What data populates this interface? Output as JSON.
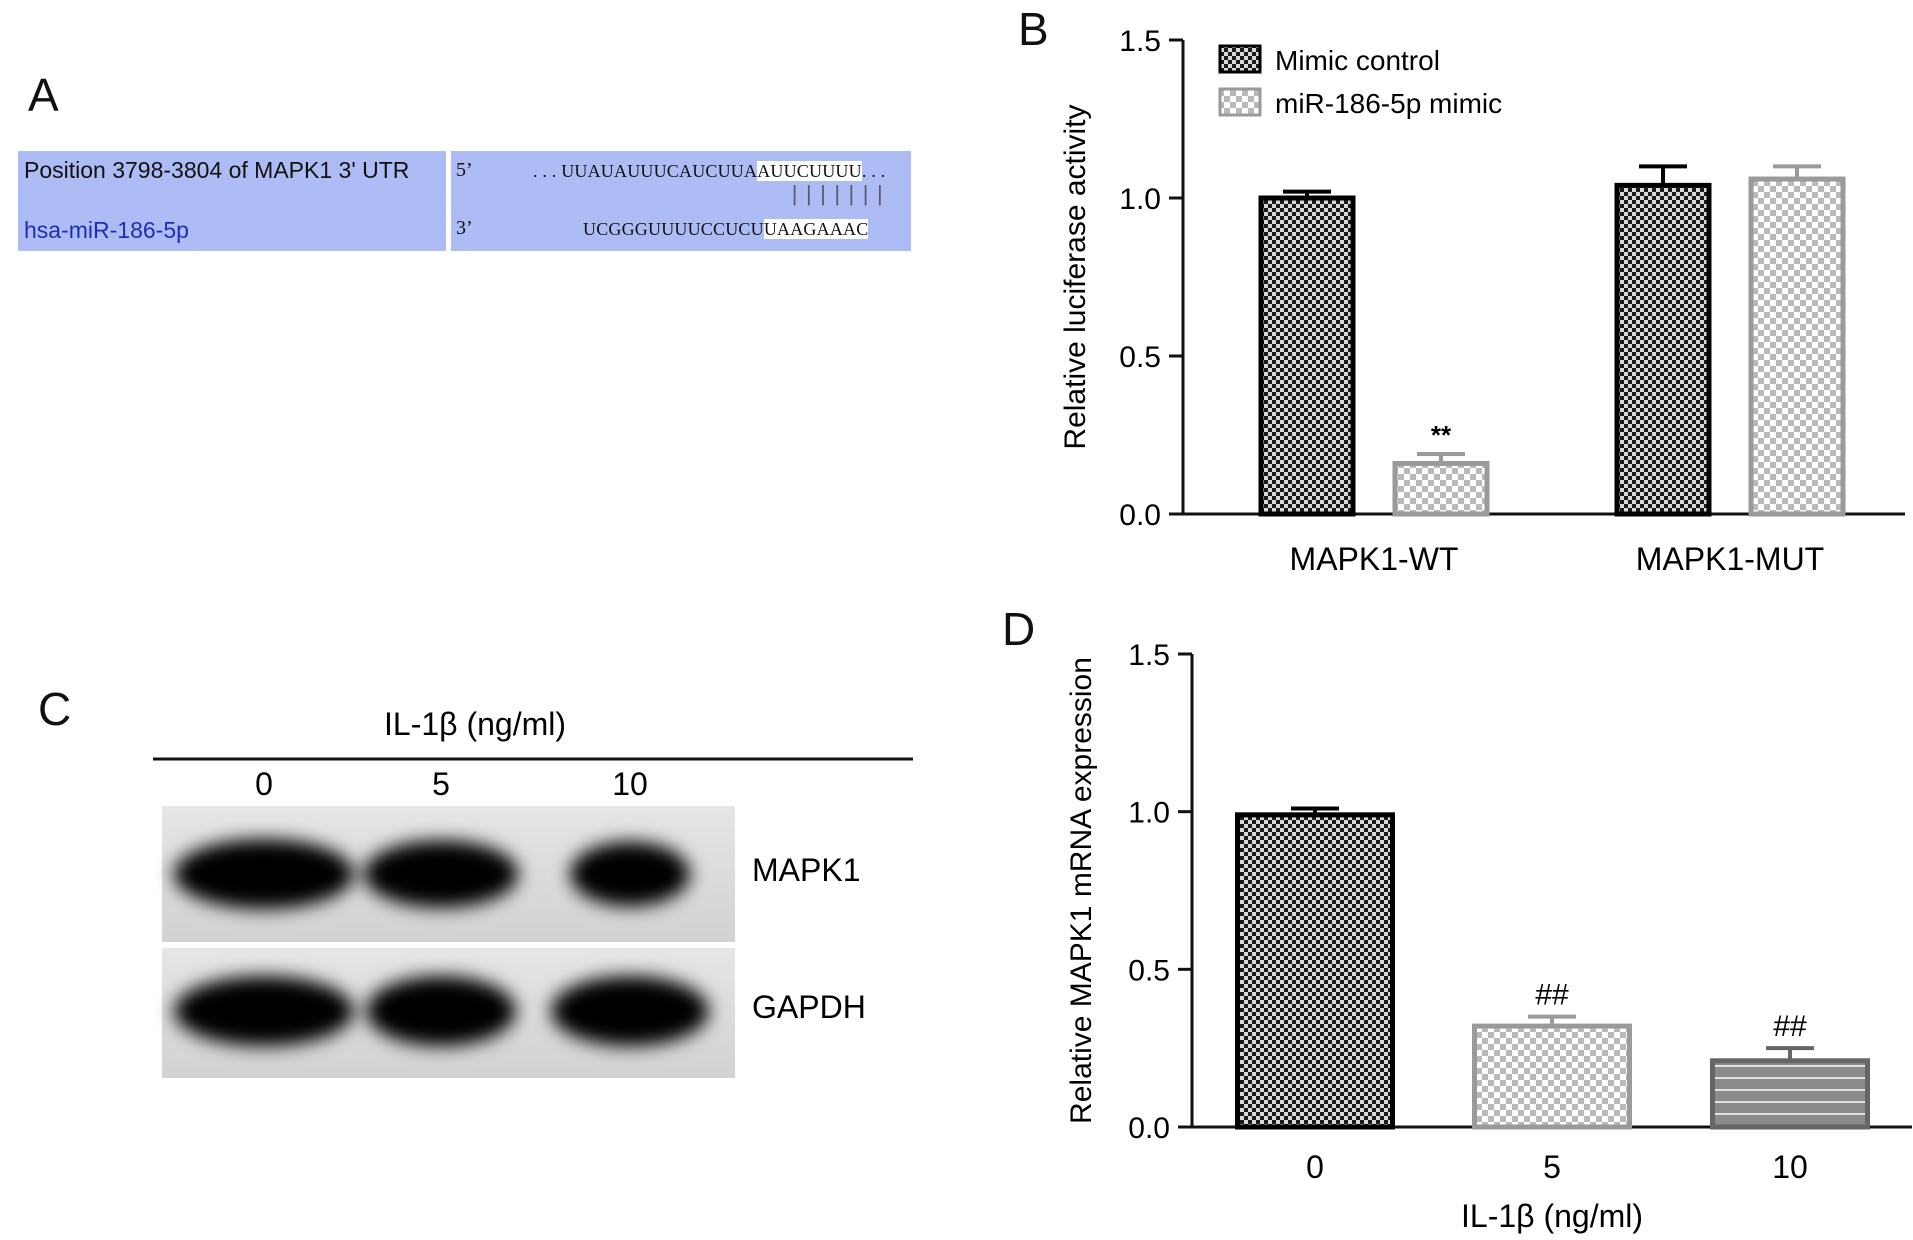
{
  "panels": {
    "a": "A",
    "b": "B",
    "c": "C",
    "d": "D"
  },
  "panel_a": {
    "target_label": "Position 3798-3804 of MAPK1 3' UTR",
    "mirna_label": "hsa-miR-186-5p",
    "target_prime": "5’",
    "mirna_prime": "3’",
    "target_seq_pre": ". . . UUAUAUUUCAUCUUA",
    "target_seq_seed": "AUUCUUUU",
    "target_seq_post": ". . .",
    "mirna_seq_pre": "UCGGGUUUUCCUCU",
    "mirna_seq_seed": "UAAGAAAC",
    "pairing": "|||||||"
  },
  "panel_c": {
    "treatment_label": "IL-1β (ng/ml)",
    "lanes": [
      "0",
      "5",
      "10"
    ],
    "bands": [
      {
        "name": "MAPK1",
        "intensities": [
          1.0,
          0.85,
          0.7
        ]
      },
      {
        "name": "GAPDH",
        "intensities": [
          1.0,
          1.0,
          1.0
        ]
      }
    ]
  },
  "chart_data": [
    {
      "type": "bar",
      "panel": "B",
      "categories": [
        "MAPK1-WT",
        "MAPK1-MUT"
      ],
      "series": [
        {
          "name": "Mimic control",
          "values": [
            1.0,
            1.04
          ],
          "errors": [
            0.02,
            0.06
          ],
          "pattern": "dark-checker"
        },
        {
          "name": "miR-186-5p mimic",
          "values": [
            0.16,
            1.06
          ],
          "errors": [
            0.03,
            0.04
          ],
          "pattern": "light-checker"
        }
      ],
      "annotations": [
        {
          "category": "MAPK1-WT",
          "series": "miR-186-5p mimic",
          "text": "**"
        }
      ],
      "ylabel": "Relative luciferase activity",
      "xlabel": "",
      "ylim": [
        0,
        1.5
      ],
      "yticks": [
        "0.0",
        "0.5",
        "1.0",
        "1.5"
      ],
      "legend": "top-left",
      "grid": false
    },
    {
      "type": "bar",
      "panel": "D",
      "categories": [
        "0",
        "5",
        "10"
      ],
      "values": [
        0.99,
        0.32,
        0.21
      ],
      "errors": [
        0.02,
        0.03,
        0.04
      ],
      "patterns": [
        "dark-checker",
        "light-checker",
        "stripes"
      ],
      "annotations": [
        "",
        "##",
        "##"
      ],
      "ylabel": "Relative MAPK1 mRNA expression",
      "xlabel": "IL-1β (ng/ml)",
      "ylim": [
        0,
        1.5
      ],
      "yticks": [
        "0.0",
        "0.5",
        "1.0",
        "1.5"
      ],
      "grid": false
    }
  ]
}
